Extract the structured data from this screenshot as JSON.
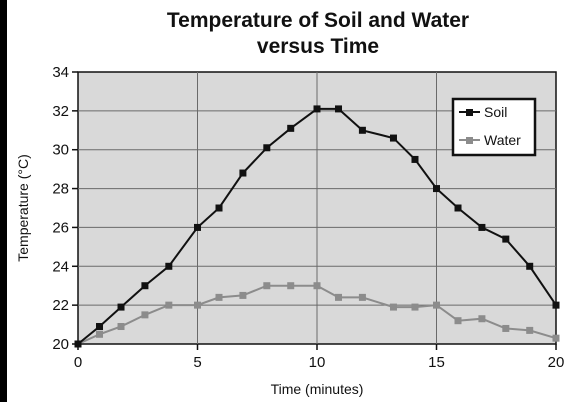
{
  "chart_data": {
    "type": "line",
    "title_line1": "Temperature of Soil and Water",
    "title_line2": "versus Time",
    "xlabel": "Time (minutes)",
    "ylabel": "Temperature (°C)",
    "xlim": [
      0,
      20
    ],
    "ylim": [
      20,
      34
    ],
    "x_ticks": [
      0,
      5,
      10,
      15,
      20
    ],
    "y_ticks": [
      20,
      22,
      24,
      26,
      28,
      30,
      32,
      34
    ],
    "grid": true,
    "legend_position": "top-right",
    "background_color": "#d9d9d9",
    "series": [
      {
        "name": "Soil",
        "color": "#111111",
        "x": [
          0,
          0.9,
          1.8,
          2.8,
          3.8,
          5,
          5.9,
          6.9,
          7.9,
          8.9,
          10,
          10.9,
          11.9,
          13.2,
          14.1,
          15,
          15.9,
          16.9,
          17.9,
          18.9,
          20
        ],
        "y": [
          20,
          20.9,
          21.9,
          23,
          24,
          26,
          27,
          28.8,
          30.1,
          31.1,
          32.1,
          32.1,
          31,
          30.6,
          29.5,
          28,
          27,
          26,
          25.4,
          24,
          22
        ]
      },
      {
        "name": "Water",
        "color": "#8c8c8c",
        "x": [
          0,
          0.9,
          1.8,
          2.8,
          3.8,
          5,
          5.9,
          6.9,
          7.9,
          8.9,
          10,
          10.9,
          11.9,
          13.2,
          14.1,
          15,
          15.9,
          16.9,
          17.9,
          18.9,
          20
        ],
        "y": [
          20,
          20.5,
          20.9,
          21.5,
          22,
          22,
          22.4,
          22.5,
          23,
          23,
          23,
          22.4,
          22.4,
          21.9,
          21.9,
          22,
          21.2,
          21.3,
          20.8,
          20.7,
          20.3
        ]
      }
    ]
  }
}
